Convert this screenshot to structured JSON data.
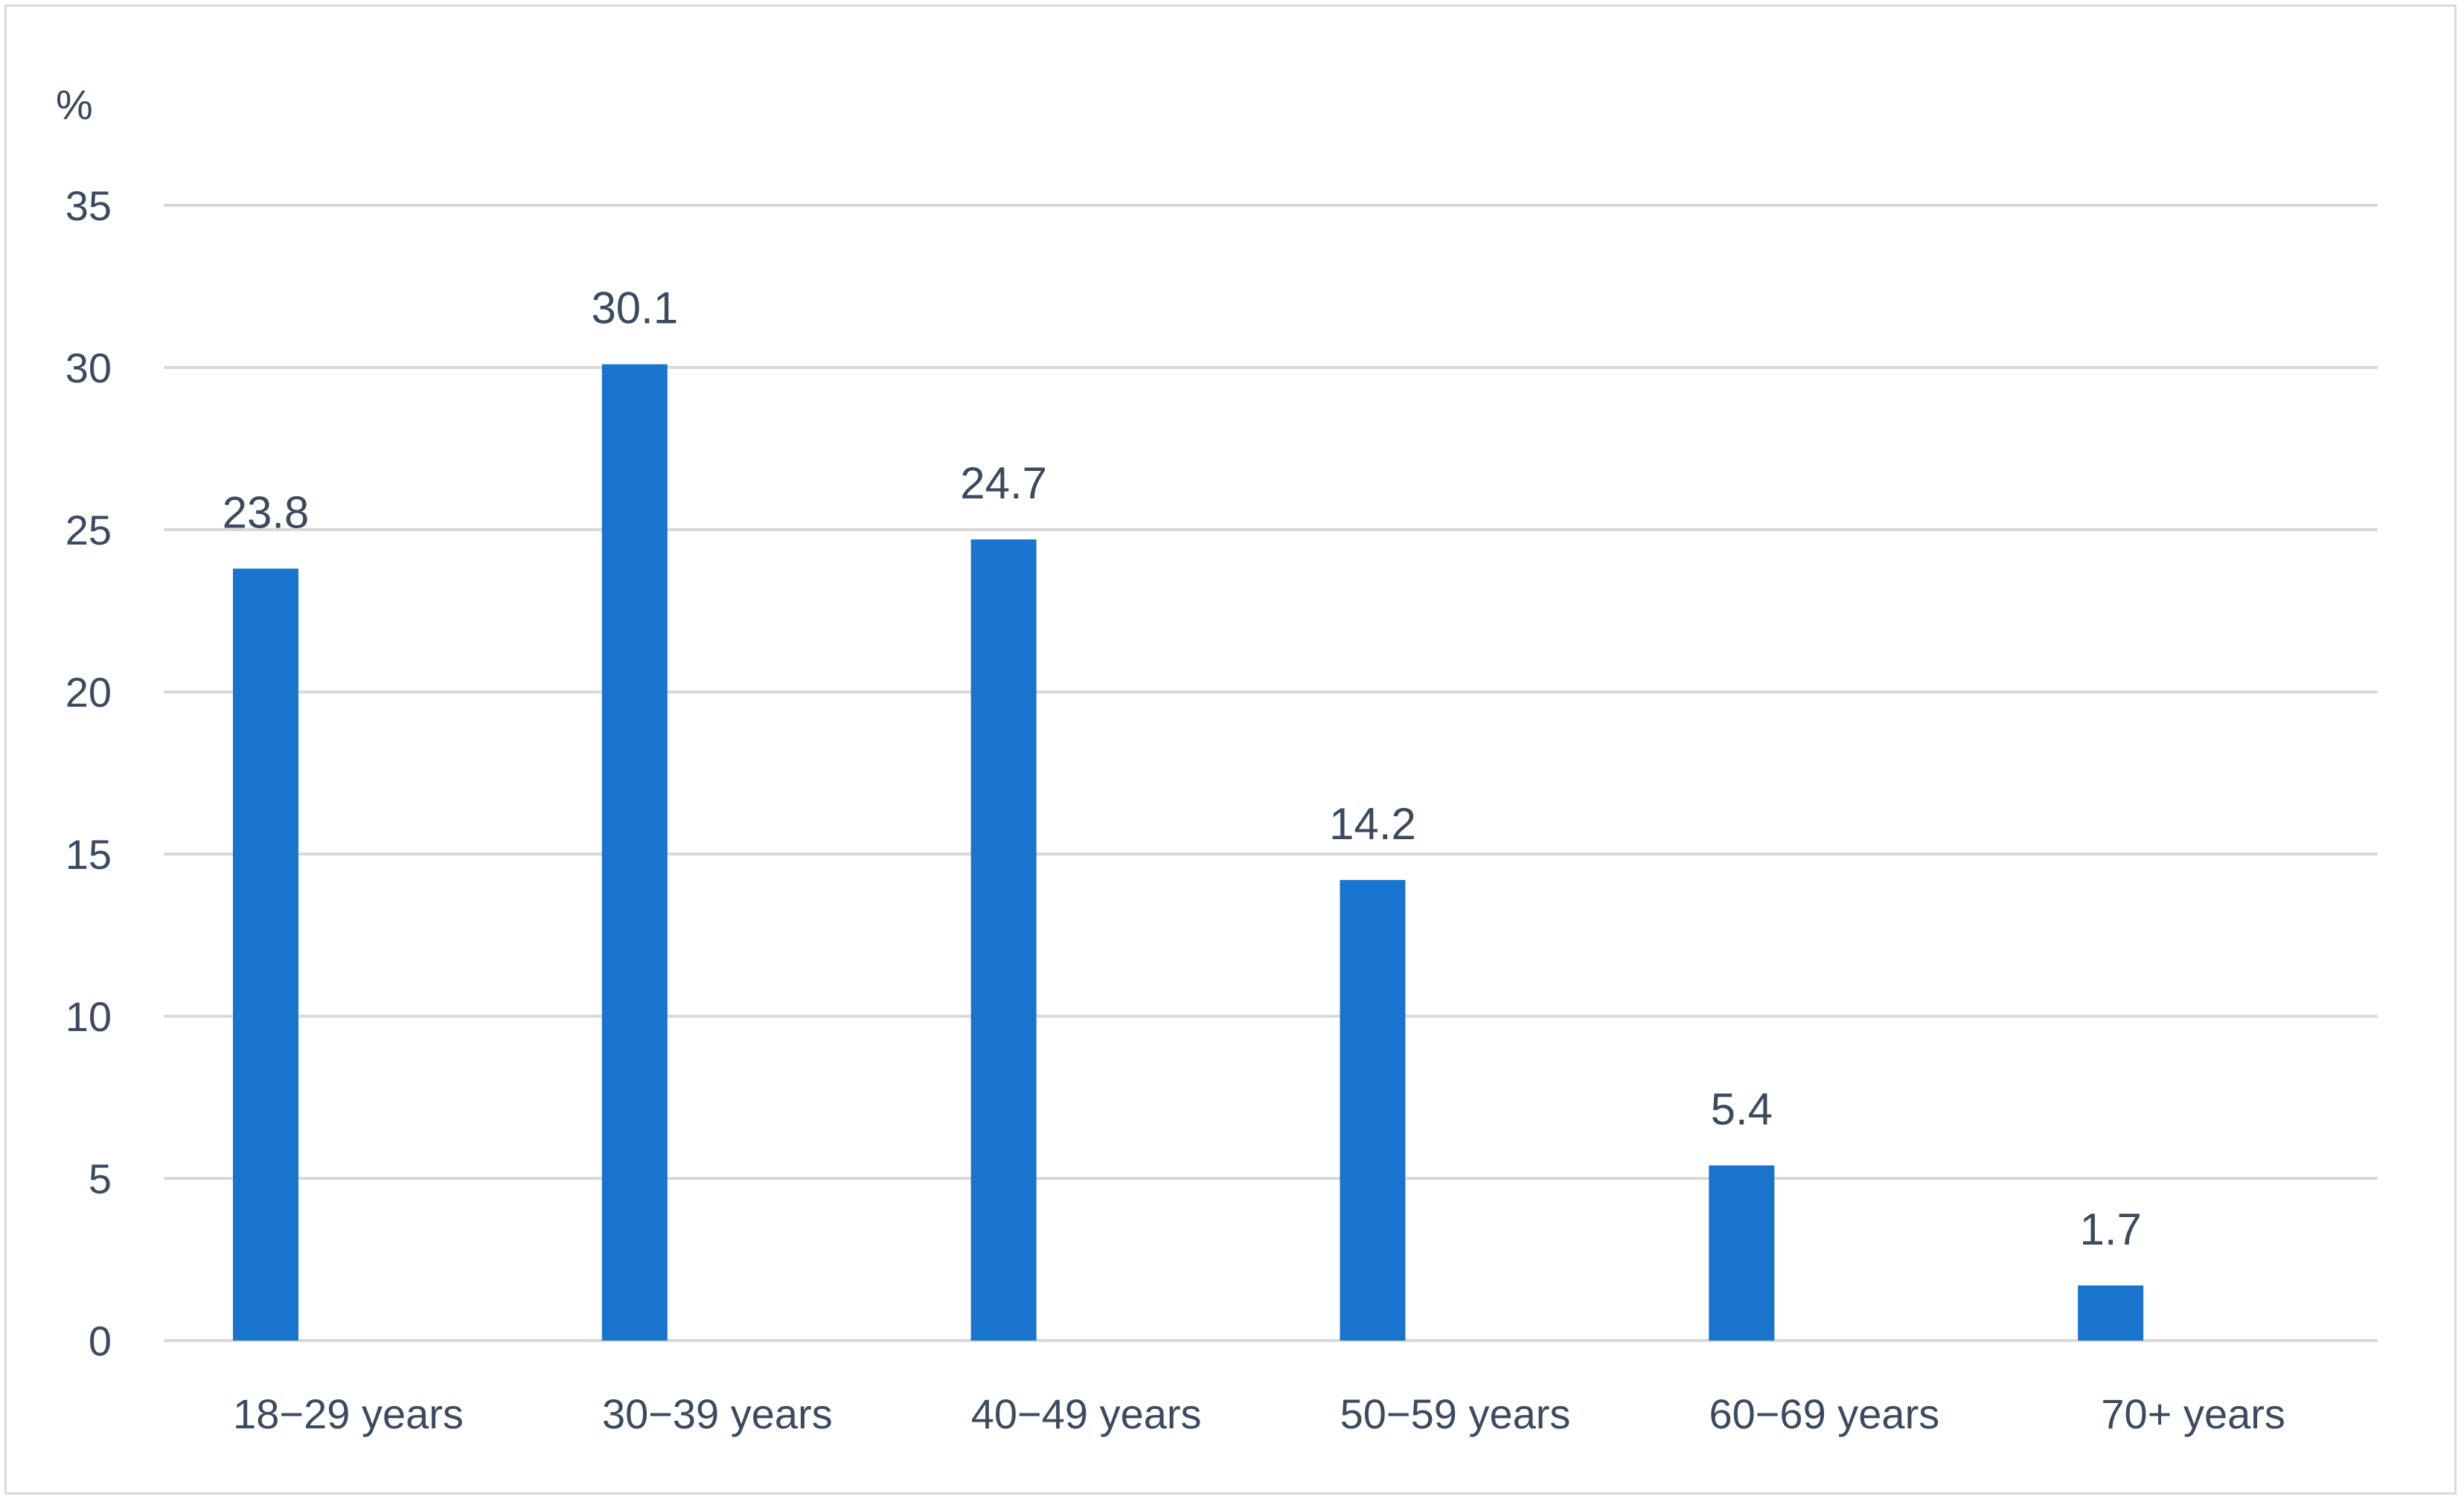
{
  "chart_data": {
    "type": "bar",
    "title": "",
    "xlabel": "",
    "ylabel": "%",
    "categories": [
      "18−29 years",
      "30−39 years",
      "40−49 years",
      "50−59 years",
      "60−69 years",
      "70+ years"
    ],
    "values": [
      23.8,
      30.1,
      24.7,
      14.2,
      5.4,
      1.7
    ],
    "value_labels": [
      "23.8",
      "30.1",
      "24.7",
      "14.2",
      "5.4",
      "1.7"
    ],
    "ylim": [
      0,
      35
    ],
    "yticks": [
      0,
      5,
      10,
      15,
      20,
      25,
      30,
      35
    ],
    "grid": true,
    "legend": "none",
    "bar_color": "#1874cd",
    "grid_color": "#d9d9d9",
    "text_color": "#3b4a5e"
  }
}
